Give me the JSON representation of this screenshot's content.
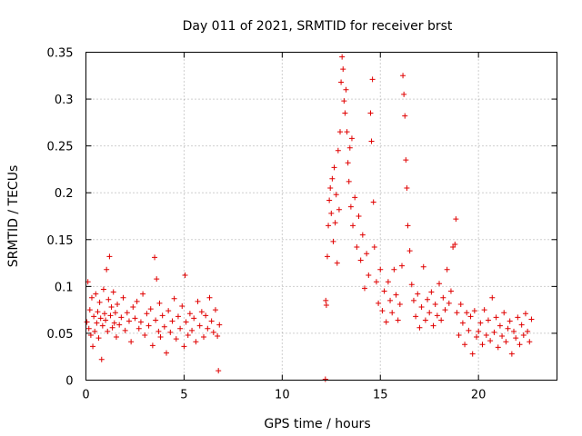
{
  "chart_data": {
    "type": "scatter",
    "title": "Day 011 of 2021, SRMTID for receiver brst",
    "xlabel": "GPS time / hours",
    "ylabel": "SRMTID / TECUs",
    "xlim": [
      0,
      24
    ],
    "ylim": [
      0,
      0.35
    ],
    "grid": true,
    "marker": "+",
    "color": "#e00000",
    "xticks": [
      {
        "value": 0,
        "label": "0"
      },
      {
        "value": 5,
        "label": "5"
      },
      {
        "value": 10,
        "label": "10"
      },
      {
        "value": 15,
        "label": "15"
      },
      {
        "value": 20,
        "label": "20"
      }
    ],
    "yticks": [
      {
        "value": 0,
        "label": "0"
      },
      {
        "value": 0.05,
        "label": "0.05"
      },
      {
        "value": 0.1,
        "label": "0.1"
      },
      {
        "value": 0.15,
        "label": "0.15"
      },
      {
        "value": 0.2,
        "label": "0.2"
      },
      {
        "value": 0.25,
        "label": "0.25"
      },
      {
        "value": 0.3,
        "label": "0.3"
      },
      {
        "value": 0.35,
        "label": "0.35"
      }
    ],
    "series": [
      {
        "name": "SRMTID",
        "points": [
          [
            0.05,
            0.062
          ],
          [
            0.1,
            0.105
          ],
          [
            0.15,
            0.055
          ],
          [
            0.2,
            0.075
          ],
          [
            0.25,
            0.048
          ],
          [
            0.3,
            0.088
          ],
          [
            0.35,
            0.036
          ],
          [
            0.4,
            0.068
          ],
          [
            0.45,
            0.052
          ],
          [
            0.5,
            0.092
          ],
          [
            0.55,
            0.061
          ],
          [
            0.6,
            0.073
          ],
          [
            0.65,
            0.045
          ],
          [
            0.7,
            0.083
          ],
          [
            0.75,
            0.066
          ],
          [
            0.8,
            0.022
          ],
          [
            0.85,
            0.058
          ],
          [
            0.9,
            0.097
          ],
          [
            0.95,
            0.071
          ],
          [
            1.0,
            0.064
          ],
          [
            1.05,
            0.118
          ],
          [
            1.1,
            0.052
          ],
          [
            1.15,
            0.086
          ],
          [
            1.2,
            0.132
          ],
          [
            1.25,
            0.069
          ],
          [
            1.3,
            0.078
          ],
          [
            1.35,
            0.056
          ],
          [
            1.4,
            0.094
          ],
          [
            1.45,
            0.061
          ],
          [
            1.5,
            0.072
          ],
          [
            1.55,
            0.046
          ],
          [
            1.6,
            0.081
          ],
          [
            1.7,
            0.059
          ],
          [
            1.8,
            0.067
          ],
          [
            1.9,
            0.088
          ],
          [
            2.0,
            0.053
          ],
          [
            2.1,
            0.072
          ],
          [
            2.2,
            0.063
          ],
          [
            2.3,
            0.041
          ],
          [
            2.4,
            0.078
          ],
          [
            2.5,
            0.066
          ],
          [
            2.6,
            0.084
          ],
          [
            2.7,
            0.055
          ],
          [
            2.8,
            0.062
          ],
          [
            2.9,
            0.092
          ],
          [
            3.0,
            0.048
          ],
          [
            3.1,
            0.071
          ],
          [
            3.2,
            0.058
          ],
          [
            3.3,
            0.076
          ],
          [
            3.4,
            0.037
          ],
          [
            3.5,
            0.131
          ],
          [
            3.55,
            0.064
          ],
          [
            3.6,
            0.108
          ],
          [
            3.7,
            0.052
          ],
          [
            3.75,
            0.082
          ],
          [
            3.8,
            0.046
          ],
          [
            3.9,
            0.069
          ],
          [
            4.0,
            0.057
          ],
          [
            4.1,
            0.029
          ],
          [
            4.2,
            0.074
          ],
          [
            4.3,
            0.051
          ],
          [
            4.4,
            0.063
          ],
          [
            4.5,
            0.087
          ],
          [
            4.6,
            0.044
          ],
          [
            4.7,
            0.068
          ],
          [
            4.8,
            0.055
          ],
          [
            4.9,
            0.079
          ],
          [
            5.0,
            0.036
          ],
          [
            5.05,
            0.112
          ],
          [
            5.1,
            0.062
          ],
          [
            5.2,
            0.048
          ],
          [
            5.3,
            0.071
          ],
          [
            5.4,
            0.053
          ],
          [
            5.5,
            0.066
          ],
          [
            5.6,
            0.041
          ],
          [
            5.7,
            0.084
          ],
          [
            5.8,
            0.058
          ],
          [
            5.9,
            0.073
          ],
          [
            6.0,
            0.046
          ],
          [
            6.1,
            0.069
          ],
          [
            6.2,
            0.055
          ],
          [
            6.3,
            0.088
          ],
          [
            6.4,
            0.063
          ],
          [
            6.5,
            0.051
          ],
          [
            6.6,
            0.075
          ],
          [
            6.7,
            0.047
          ],
          [
            6.75,
            0.01
          ],
          [
            6.8,
            0.059
          ],
          [
            12.2,
            0.001
          ],
          [
            12.22,
            0.085
          ],
          [
            12.25,
            0.08
          ],
          [
            12.3,
            0.132
          ],
          [
            12.35,
            0.165
          ],
          [
            12.4,
            0.192
          ],
          [
            12.45,
            0.205
          ],
          [
            12.5,
            0.178
          ],
          [
            12.55,
            0.215
          ],
          [
            12.6,
            0.148
          ],
          [
            12.65,
            0.227
          ],
          [
            12.7,
            0.168
          ],
          [
            12.75,
            0.198
          ],
          [
            12.8,
            0.125
          ],
          [
            12.85,
            0.245
          ],
          [
            12.9,
            0.182
          ],
          [
            12.95,
            0.265
          ],
          [
            13.0,
            0.318
          ],
          [
            13.05,
            0.345
          ],
          [
            13.1,
            0.332
          ],
          [
            13.15,
            0.298
          ],
          [
            13.2,
            0.285
          ],
          [
            13.25,
            0.31
          ],
          [
            13.3,
            0.265
          ],
          [
            13.35,
            0.232
          ],
          [
            13.4,
            0.212
          ],
          [
            13.45,
            0.248
          ],
          [
            13.5,
            0.185
          ],
          [
            13.55,
            0.258
          ],
          [
            13.6,
            0.165
          ],
          [
            13.7,
            0.195
          ],
          [
            13.8,
            0.142
          ],
          [
            13.9,
            0.175
          ],
          [
            14.0,
            0.128
          ],
          [
            14.1,
            0.155
          ],
          [
            14.2,
            0.098
          ],
          [
            14.3,
            0.135
          ],
          [
            14.4,
            0.112
          ],
          [
            14.5,
            0.285
          ],
          [
            14.55,
            0.255
          ],
          [
            14.6,
            0.321
          ],
          [
            14.65,
            0.19
          ],
          [
            14.7,
            0.142
          ],
          [
            14.8,
            0.105
          ],
          [
            14.9,
            0.082
          ],
          [
            15.0,
            0.118
          ],
          [
            15.1,
            0.074
          ],
          [
            15.2,
            0.095
          ],
          [
            15.3,
            0.062
          ],
          [
            15.4,
            0.105
          ],
          [
            15.5,
            0.085
          ],
          [
            15.6,
            0.072
          ],
          [
            15.7,
            0.118
          ],
          [
            15.8,
            0.091
          ],
          [
            15.9,
            0.064
          ],
          [
            16.0,
            0.081
          ],
          [
            16.1,
            0.122
          ],
          [
            16.15,
            0.325
          ],
          [
            16.2,
            0.305
          ],
          [
            16.25,
            0.282
          ],
          [
            16.3,
            0.235
          ],
          [
            16.35,
            0.205
          ],
          [
            16.4,
            0.165
          ],
          [
            16.5,
            0.138
          ],
          [
            16.6,
            0.102
          ],
          [
            16.7,
            0.085
          ],
          [
            16.8,
            0.068
          ],
          [
            16.9,
            0.092
          ],
          [
            17.0,
            0.056
          ],
          [
            17.1,
            0.078
          ],
          [
            17.2,
            0.121
          ],
          [
            17.3,
            0.064
          ],
          [
            17.4,
            0.086
          ],
          [
            17.5,
            0.072
          ],
          [
            17.6,
            0.094
          ],
          [
            17.7,
            0.058
          ],
          [
            17.8,
            0.081
          ],
          [
            17.9,
            0.069
          ],
          [
            18.0,
            0.103
          ],
          [
            18.1,
            0.064
          ],
          [
            18.2,
            0.088
          ],
          [
            18.3,
            0.075
          ],
          [
            18.4,
            0.118
          ],
          [
            18.5,
            0.082
          ],
          [
            18.6,
            0.095
          ],
          [
            18.7,
            0.142
          ],
          [
            18.8,
            0.145
          ],
          [
            18.85,
            0.172
          ],
          [
            18.9,
            0.072
          ],
          [
            19.0,
            0.048
          ],
          [
            19.1,
            0.081
          ],
          [
            19.2,
            0.061
          ],
          [
            19.3,
            0.038
          ],
          [
            19.4,
            0.072
          ],
          [
            19.5,
            0.053
          ],
          [
            19.6,
            0.068
          ],
          [
            19.7,
            0.028
          ],
          [
            19.8,
            0.074
          ],
          [
            19.9,
            0.046
          ],
          [
            20.0,
            0.052
          ],
          [
            20.1,
            0.061
          ],
          [
            20.2,
            0.038
          ],
          [
            20.3,
            0.075
          ],
          [
            20.4,
            0.048
          ],
          [
            20.5,
            0.064
          ],
          [
            20.6,
            0.042
          ],
          [
            20.7,
            0.088
          ],
          [
            20.8,
            0.051
          ],
          [
            20.9,
            0.067
          ],
          [
            21.0,
            0.035
          ],
          [
            21.1,
            0.058
          ],
          [
            21.2,
            0.047
          ],
          [
            21.3,
            0.072
          ],
          [
            21.4,
            0.041
          ],
          [
            21.5,
            0.055
          ],
          [
            21.6,
            0.063
          ],
          [
            21.7,
            0.028
          ],
          [
            21.8,
            0.052
          ],
          [
            21.9,
            0.045
          ],
          [
            22.0,
            0.067
          ],
          [
            22.1,
            0.038
          ],
          [
            22.2,
            0.059
          ],
          [
            22.3,
            0.048
          ],
          [
            22.4,
            0.071
          ],
          [
            22.5,
            0.052
          ],
          [
            22.6,
            0.041
          ],
          [
            22.7,
            0.065
          ]
        ]
      }
    ]
  }
}
